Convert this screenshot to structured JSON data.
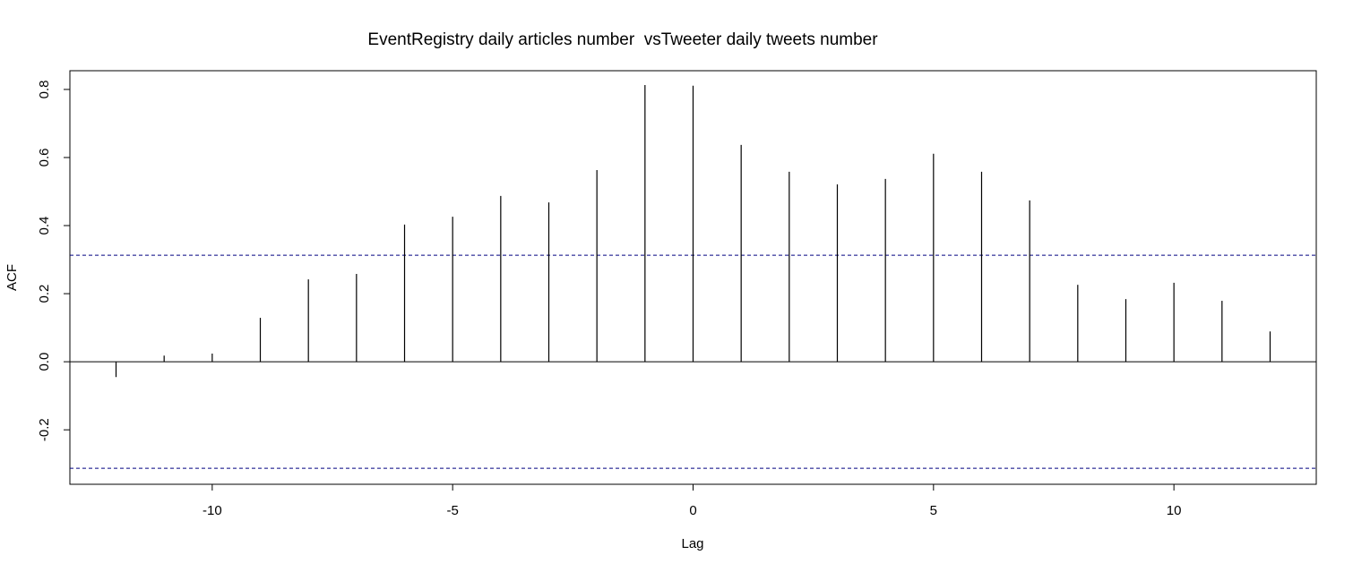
{
  "chart_data": {
    "type": "ccf",
    "title": "EventRegistry daily articles number  vsTweeter daily tweets number",
    "xlabel": "Lag",
    "ylabel": "ACF",
    "x": [
      -12,
      -11,
      -10,
      -9,
      -8,
      -7,
      -6,
      -5,
      -4,
      -3,
      -2,
      -1,
      0,
      1,
      2,
      3,
      4,
      5,
      6,
      7,
      8,
      9,
      10,
      11,
      12
    ],
    "values": [
      -0.045,
      0.018,
      0.024,
      0.129,
      0.242,
      0.258,
      0.403,
      0.426,
      0.487,
      0.468,
      0.563,
      0.813,
      0.811,
      0.637,
      0.558,
      0.521,
      0.537,
      0.611,
      0.558,
      0.474,
      0.226,
      0.184,
      0.232,
      0.179,
      0.089
    ],
    "color": "#000000",
    "confidence_bounds": [
      0.313,
      -0.313
    ],
    "bound_color": "#000080",
    "xlim": [
      -12.96,
      12.96
    ],
    "ylim": [
      -0.36,
      0.855
    ],
    "xticks": [
      -10,
      -5,
      0,
      5,
      10
    ],
    "yticks": [
      -0.2,
      {
        "value": 0,
        "label": "0.0"
      },
      0.2,
      0.4,
      0.6,
      0.8
    ]
  }
}
